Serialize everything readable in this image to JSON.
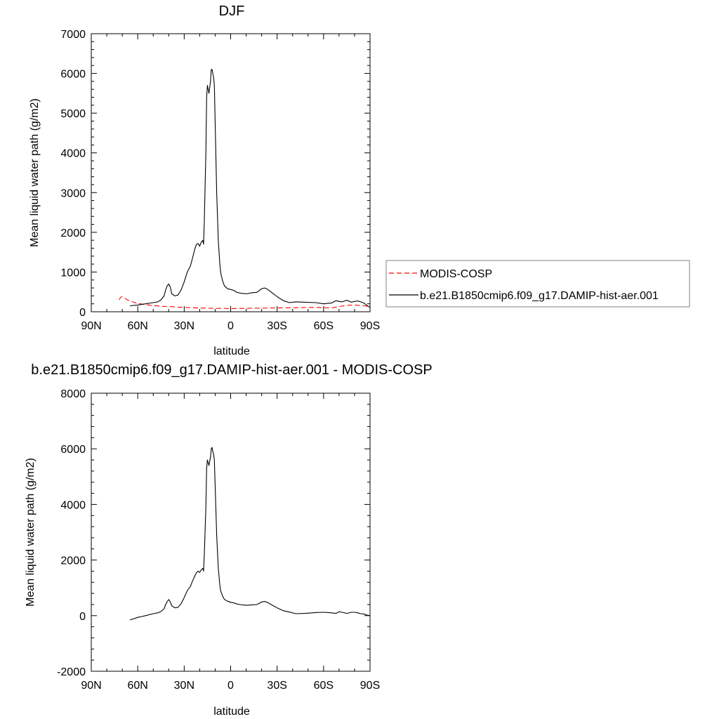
{
  "chart_data": [
    {
      "type": "line",
      "title": "DJF",
      "xlabel": "latitude",
      "ylabel": "Mean liquid water path (g/m2)",
      "xlim": [
        90,
        -90
      ],
      "ylim": [
        0,
        7000
      ],
      "x_ticks": [
        90,
        60,
        30,
        0,
        -30,
        -60,
        -90
      ],
      "x_tick_labels": [
        "90N",
        "60N",
        "30N",
        "0",
        "30S",
        "60S",
        "90S"
      ],
      "y_ticks": [
        0,
        1000,
        2000,
        3000,
        4000,
        5000,
        6000,
        7000
      ],
      "y_tick_labels": [
        "0",
        "1000",
        "2000",
        "3000",
        "4000",
        "5000",
        "6000",
        "7000"
      ],
      "grid": false,
      "legend_position": "right",
      "series": [
        {
          "name": "MODIS-COSP",
          "color": "#ff0000",
          "dash": "dashed",
          "x": [
            72,
            71,
            70,
            68,
            66,
            64,
            62,
            60,
            55,
            50,
            45,
            40,
            35,
            30,
            25,
            20,
            15,
            10,
            5,
            0,
            -5,
            -10,
            -15,
            -20,
            -25,
            -30,
            -35,
            -40,
            -45,
            -50,
            -55,
            -60,
            -65,
            -70,
            -75,
            -80,
            -85,
            -88,
            -90
          ],
          "y": [
            300,
            370,
            380,
            330,
            290,
            260,
            230,
            210,
            180,
            155,
            140,
            130,
            120,
            110,
            100,
            95,
            90,
            85,
            85,
            80,
            85,
            85,
            90,
            90,
            95,
            95,
            100,
            100,
            105,
            110,
            110,
            105,
            95,
            130,
            160,
            170,
            155,
            140,
            100
          ]
        },
        {
          "name": "b.e21.B1850cmip6.f09_g17.DAMIP-hist-aer.001",
          "color": "#000000",
          "dash": "solid",
          "x": [
            65,
            60,
            55,
            50,
            47,
            45,
            43,
            42,
            41,
            40,
            39,
            38,
            36,
            34,
            32,
            30,
            28,
            26,
            25,
            23,
            22,
            21,
            20,
            19.5,
            19,
            18,
            17.5,
            17,
            16,
            15.5,
            15,
            14,
            13,
            12.5,
            12,
            11.5,
            11,
            10.5,
            10,
            9,
            8,
            7,
            6.5,
            6,
            5,
            4,
            2,
            0,
            -2,
            -4,
            -6,
            -10,
            -14,
            -17,
            -20,
            -22,
            -24,
            -27,
            -30,
            -34,
            -38,
            -42,
            -48,
            -55,
            -60,
            -65,
            -68,
            -70,
            -72,
            -75,
            -78,
            -80,
            -82,
            -84,
            -86,
            -88,
            -90
          ],
          "y": [
            150,
            170,
            200,
            230,
            250,
            300,
            400,
            550,
            650,
            700,
            620,
            450,
            400,
            420,
            550,
            750,
            1000,
            1150,
            1300,
            1600,
            1700,
            1720,
            1650,
            1700,
            1750,
            1800,
            1700,
            2300,
            4000,
            5400,
            5700,
            5500,
            5800,
            6100,
            6100,
            6000,
            5900,
            5700,
            4800,
            3000,
            1800,
            1200,
            1000,
            900,
            750,
            650,
            580,
            560,
            540,
            490,
            470,
            450,
            480,
            490,
            580,
            600,
            560,
            470,
            380,
            280,
            230,
            250,
            240,
            230,
            200,
            220,
            280,
            260,
            250,
            290,
            240,
            260,
            270,
            250,
            220,
            160,
            110
          ]
        }
      ]
    },
    {
      "type": "line",
      "title": "b.e21.B1850cmip6.f09_g17.DAMIP-hist-aer.001 - MODIS-COSP",
      "xlabel": "latitude",
      "ylabel": "Mean liquid water path (g/m2)",
      "xlim": [
        90,
        -90
      ],
      "ylim": [
        -2000,
        8000
      ],
      "x_ticks": [
        90,
        60,
        30,
        0,
        -30,
        -60,
        -90
      ],
      "x_tick_labels": [
        "90N",
        "60N",
        "30N",
        "0",
        "30S",
        "60S",
        "90S"
      ],
      "y_ticks": [
        -2000,
        0,
        2000,
        4000,
        6000,
        8000
      ],
      "y_tick_labels": [
        "-2000",
        "0",
        "2000",
        "4000",
        "6000",
        "8000"
      ],
      "grid": false,
      "series": [
        {
          "color": "#000000",
          "dash": "solid",
          "x": [
            65,
            63,
            60,
            58,
            55,
            50,
            47,
            45,
            43,
            42,
            41,
            40,
            39,
            38,
            36,
            34,
            32,
            30,
            28,
            26,
            25,
            23,
            22,
            21,
            20,
            19.5,
            19,
            18,
            17.5,
            17,
            16,
            15.5,
            15,
            14,
            13,
            12.5,
            12,
            11.5,
            11,
            10.5,
            10,
            9,
            8,
            7,
            6.5,
            6,
            5,
            4,
            2,
            0,
            -2,
            -4,
            -6,
            -10,
            -14,
            -17,
            -20,
            -22,
            -24,
            -27,
            -30,
            -34,
            -38,
            -42,
            -48,
            -55,
            -60,
            -65,
            -68,
            -70,
            -72,
            -75,
            -78,
            -80,
            -82,
            -84,
            -86,
            -88,
            -90
          ],
          "y": [
            -150,
            -120,
            -60,
            -40,
            0,
            70,
            100,
            150,
            250,
            400,
            500,
            580,
            500,
            350,
            280,
            300,
            430,
            650,
            900,
            1050,
            1200,
            1450,
            1550,
            1600,
            1550,
            1600,
            1650,
            1700,
            1600,
            2200,
            3900,
            5300,
            5600,
            5400,
            5700,
            6000,
            6050,
            5900,
            5800,
            5600,
            4700,
            2900,
            1700,
            1100,
            900,
            820,
            680,
            580,
            520,
            480,
            460,
            420,
            400,
            370,
            390,
            400,
            490,
            510,
            470,
            370,
            280,
            180,
            130,
            70,
            80,
            110,
            120,
            100,
            80,
            140,
            120,
            80,
            120,
            120,
            100,
            70,
            60,
            20,
            0
          ]
        }
      ]
    }
  ]
}
